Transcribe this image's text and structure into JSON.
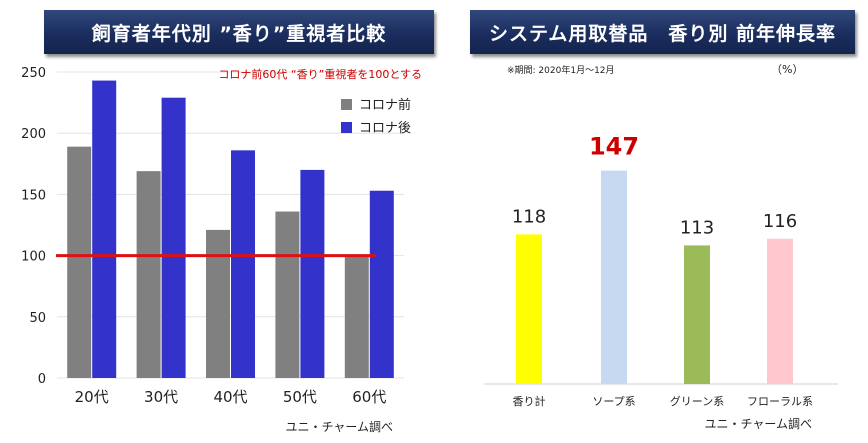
{
  "colors": {
    "banner": "#1e3163",
    "before": "#808080",
    "after": "#3333cc",
    "baseline": "#dd1111",
    "note": "#cc0000"
  },
  "chart_data": [
    {
      "type": "bar",
      "title": "飼育者年代別 ”香り”重視者比較",
      "annotation": "コロナ前60代 “香り”重視者を100とする",
      "categories": [
        "20代",
        "30代",
        "40代",
        "50代",
        "60代"
      ],
      "series": [
        {
          "name": "コロナ前",
          "values": [
            189,
            169,
            121,
            136,
            100
          ]
        },
        {
          "name": "コロナ後",
          "values": [
            243,
            229,
            186,
            170,
            153
          ]
        }
      ],
      "ylim": [
        0,
        250
      ],
      "yticks": [
        0,
        50,
        100,
        150,
        200,
        250
      ],
      "reference_line": 100,
      "legend": "top-right",
      "source": "ユニ・チャーム調べ"
    },
    {
      "type": "bar",
      "title": "システム用取替品　香り別 前年伸長率",
      "period_note": "※期間: 2020年1月～12月",
      "unit": "（%）",
      "categories": [
        "香り計",
        "ソープ系",
        "グリーン系",
        "フローラル系"
      ],
      "values": [
        118,
        147,
        113,
        116
      ],
      "colors": [
        "#ffff00",
        "#c6d9f1",
        "#9bbb59",
        "#ffc7ce"
      ],
      "highlight_index": 1,
      "source": "ユニ・チャーム調べ"
    }
  ]
}
